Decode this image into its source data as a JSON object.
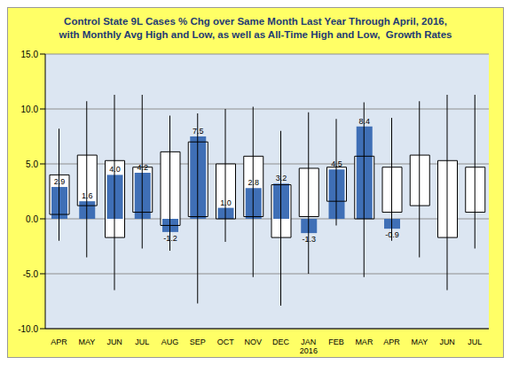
{
  "chart_data": {
    "type": "bar",
    "title": "Control State 9L Cases % Chg over Same Month Last Year Through April, 2016,\nwith Monthly Avg High and Low, as well as All-Time High and Low,  Growth Rates",
    "categories": [
      "APR",
      "MAY",
      "JUN",
      "JUL",
      "AUG",
      "SEP",
      "OCT",
      "NOV",
      "DEC",
      "JAN\n2016",
      "FEB",
      "MAR",
      "APR",
      "MAY",
      "JUN",
      "JUL"
    ],
    "values": [
      2.9,
      1.6,
      4.0,
      4.2,
      -1.2,
      7.5,
      1.0,
      2.8,
      3.2,
      -1.3,
      4.5,
      8.4,
      -0.9,
      null,
      null,
      null
    ],
    "value_labels": [
      "2.9",
      "1.6",
      "4.0",
      "4.2",
      "-1.2",
      "7.5",
      "1.0",
      "2.8",
      "3.2",
      "-1.3",
      "4.5",
      "8.4",
      "-0.9",
      null,
      null,
      null
    ],
    "avg_low": [
      0.4,
      1.2,
      -1.7,
      0.6,
      -0.6,
      0.2,
      0.0,
      0.2,
      -1.7,
      0.2,
      1.6,
      0.0,
      0.6,
      1.2,
      -1.7,
      0.6
    ],
    "avg_high": [
      4.0,
      5.8,
      5.3,
      4.7,
      6.1,
      7.0,
      5.0,
      5.7,
      3.1,
      4.6,
      4.7,
      5.7,
      4.7,
      5.8,
      5.3,
      4.7
    ],
    "all_time_low": [
      -2.0,
      -3.5,
      -6.5,
      -2.7,
      -2.9,
      -7.7,
      -2.1,
      -5.3,
      -7.9,
      -5.0,
      -0.6,
      -5.3,
      -2.0,
      -3.5,
      -6.5,
      -2.7
    ],
    "all_time_high": [
      8.2,
      10.7,
      11.3,
      11.3,
      9.4,
      9.6,
      10.0,
      10.2,
      8.0,
      9.7,
      9.1,
      10.6,
      9.2,
      10.7,
      11.3,
      11.3
    ],
    "color": "#3f6fb6",
    "ylim": [
      -10,
      15
    ],
    "yticks": [
      {
        "value": -10,
        "label": "-10.0"
      },
      {
        "value": -5,
        "label": "-5.0"
      },
      {
        "value": 0,
        "label": "0.0"
      },
      {
        "value": 5,
        "label": "5.0"
      },
      {
        "value": 10,
        "label": "10.0"
      },
      {
        "value": 15,
        "label": "15.0"
      }
    ],
    "grid": true,
    "data_labels": true
  }
}
